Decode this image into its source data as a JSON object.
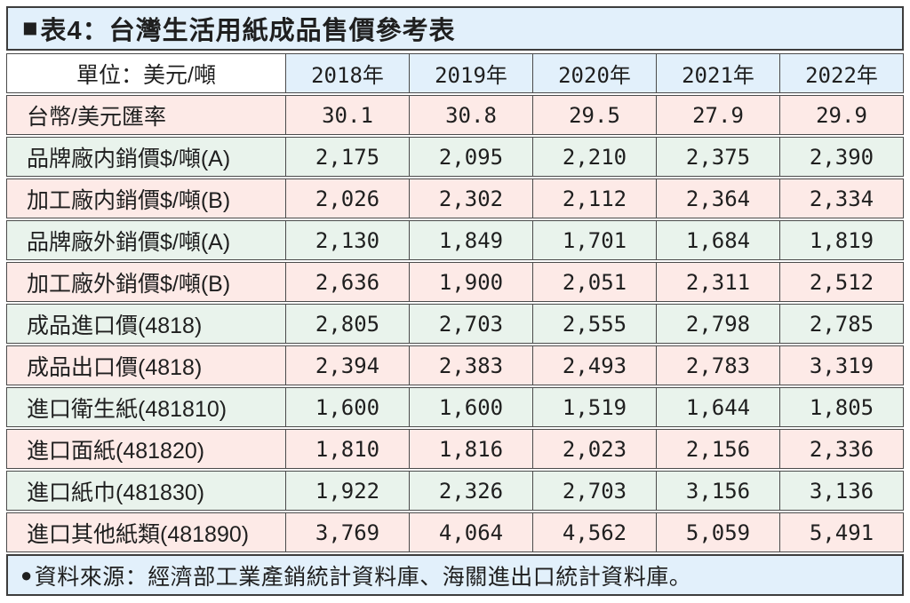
{
  "title": {
    "marker": "■",
    "text": "表4：台灣生活用紙成品售價參考表"
  },
  "colors": {
    "panel_blue": "#e2f0fb",
    "row_pink": "#fdeae7",
    "row_green": "#e9f3ec",
    "border_dark": "#4b4b4b",
    "text": "#1f1f1f"
  },
  "table": {
    "unit_label": "單位：美元/噸",
    "years": [
      "2018年",
      "2019年",
      "2020年",
      "2021年",
      "2022年"
    ],
    "rows": [
      {
        "label": "台幣/美元匯率",
        "values": [
          "30.1",
          "30.8",
          "29.5",
          "27.9",
          "29.9"
        ]
      },
      {
        "label": "品牌廠内銷價$/噸(A)",
        "values": [
          "2,175",
          "2,095",
          "2,210",
          "2,375",
          "2,390"
        ]
      },
      {
        "label": "加工廠内銷價$/噸(B)",
        "values": [
          "2,026",
          "2,302",
          "2,112",
          "2,364",
          "2,334"
        ]
      },
      {
        "label": "品牌廠外銷價$/噸(A)",
        "values": [
          "2,130",
          "1,849",
          "1,701",
          "1,684",
          "1,819"
        ]
      },
      {
        "label": "加工廠外銷價$/噸(B)",
        "values": [
          "2,636",
          "1,900",
          "2,051",
          "2,311",
          "2,512"
        ]
      },
      {
        "label": "成品進口價(4818)",
        "values": [
          "2,805",
          "2,703",
          "2,555",
          "2,798",
          "2,785"
        ]
      },
      {
        "label": "成品出口價(4818)",
        "values": [
          "2,394",
          "2,383",
          "2,493",
          "2,783",
          "3,319"
        ]
      },
      {
        "label": "進口衛生紙(481810)",
        "values": [
          "1,600",
          "1,600",
          "1,519",
          "1,644",
          "1,805"
        ]
      },
      {
        "label": "進口面紙(481820)",
        "values": [
          "1,810",
          "1,816",
          "2,023",
          "2,156",
          "2,336"
        ]
      },
      {
        "label": "進口紙巾(481830)",
        "values": [
          "1,922",
          "2,326",
          "2,703",
          "3,156",
          "3,136"
        ]
      },
      {
        "label": "進口其他紙類(481890)",
        "values": [
          "3,769",
          "4,064",
          "4,562",
          "5,059",
          "5,491"
        ]
      }
    ]
  },
  "footer": {
    "marker": "●",
    "text": "資料來源：經濟部工業產銷統計資料庫、海關進出口統計資料庫。"
  }
}
